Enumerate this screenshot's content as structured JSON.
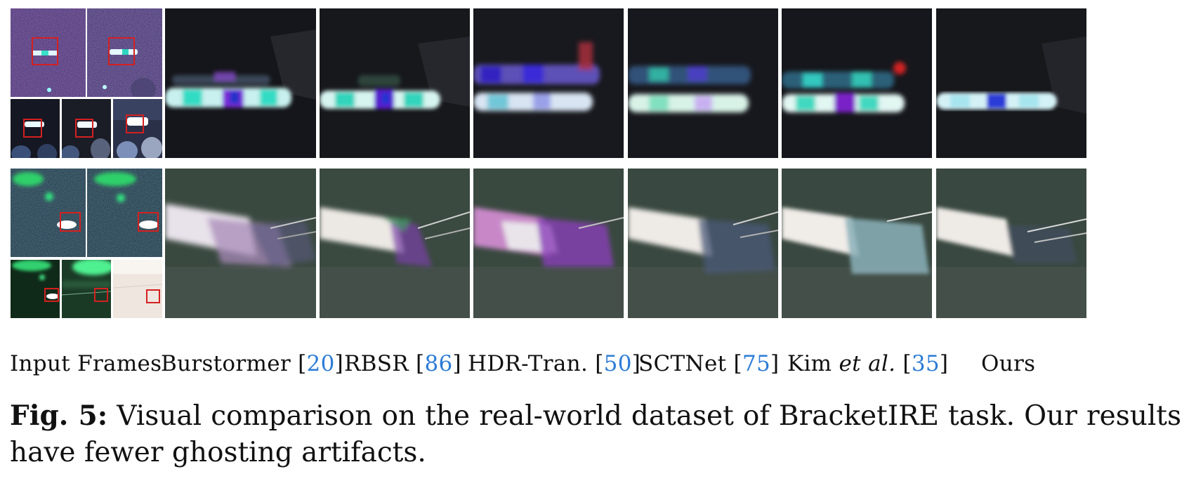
{
  "methods": [
    {
      "name": "Input Frames",
      "ref": ""
    },
    {
      "name": "Burstormer",
      "ref": "20"
    },
    {
      "name": "RBSR",
      "ref": "86"
    },
    {
      "name": "HDR-Tran.",
      "ref": "50"
    },
    {
      "name": "SCTNet",
      "ref": "75"
    },
    {
      "name": "Kim ",
      "name_em": "et al.",
      "ref": "35"
    },
    {
      "name": "Ours",
      "ref": ""
    }
  ],
  "caption": {
    "fig_label": "Fig. 5:",
    "text": "Visual comparison on the real-world dataset of BracketIRE task. Our results have fewer ghosting artifacts."
  },
  "colors": {
    "highlight_box": "#d42020",
    "reference_link": "#2b7bd6"
  }
}
